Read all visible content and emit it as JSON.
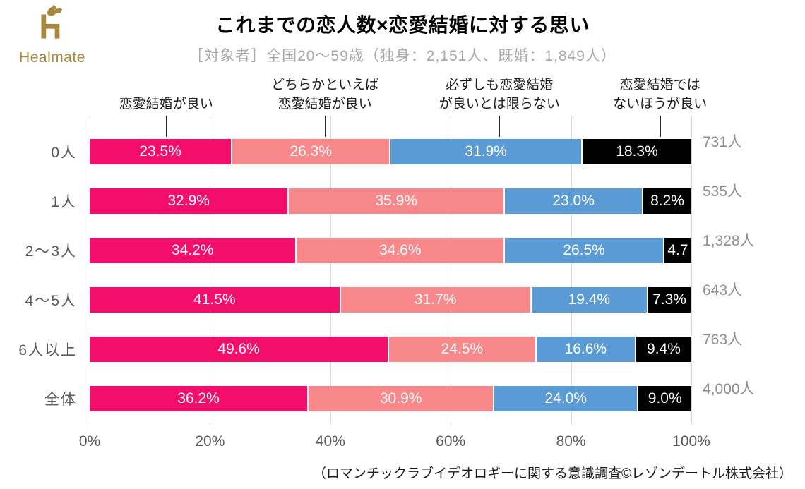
{
  "brand": {
    "logo_text": "Healmate",
    "logo_color": "#A6873B"
  },
  "header": {
    "title": "これまでの恋人数×恋愛結婚に対する思い",
    "subtitle": "［対象者］全国20～59歳（独身：2,151人、既婚：1,849人）"
  },
  "footer": {
    "source": "（ロマンチックラブイデオロギーに関する意識調査©レゾンデートル株式会社）"
  },
  "chart_data": {
    "type": "bar",
    "orientation": "horizontal",
    "stacked": true,
    "unit": "%",
    "xlim": [
      0,
      100
    ],
    "grid": true,
    "x_ticks": [
      "0%",
      "20%",
      "40%",
      "60%",
      "80%",
      "100%"
    ],
    "categories": [
      "0人",
      "1人",
      "2～3人",
      "4～5人",
      "6人以上",
      "全体"
    ],
    "counts": [
      "731人",
      "535人",
      "1,328人",
      "643人",
      "763人",
      "4,000人"
    ],
    "series": [
      {
        "name": "恋愛結婚が良い",
        "color": "#F40E6C",
        "values": [
          23.5,
          32.9,
          34.2,
          41.5,
          49.6,
          36.2
        ]
      },
      {
        "name": "どちらかといえば恋愛結婚が良い",
        "color": "#F9888A",
        "values": [
          26.3,
          35.9,
          34.6,
          31.7,
          24.5,
          30.9
        ]
      },
      {
        "name": "必ずしも恋愛結婚が良いとは限らない",
        "color": "#5B9BD5",
        "values": [
          31.9,
          23.0,
          26.5,
          19.4,
          16.6,
          24.0
        ]
      },
      {
        "name": "恋愛結婚ではないほうが良い",
        "color": "#000000",
        "values": [
          18.3,
          8.2,
          4.7,
          7.3,
          9.4,
          9.0
        ]
      }
    ],
    "labels": [
      [
        "23.5%",
        "26.3%",
        "31.9%",
        "18.3%"
      ],
      [
        "32.9%",
        "35.9%",
        "23.0%",
        "8.2%"
      ],
      [
        "34.2%",
        "34.6%",
        "26.5%",
        "4.7"
      ],
      [
        "41.5%",
        "31.7%",
        "19.4%",
        "7.3%"
      ],
      [
        "49.6%",
        "24.5%",
        "16.6%",
        "9.4%"
      ],
      [
        "36.2%",
        "30.9%",
        "24.0%",
        "9.0%"
      ]
    ],
    "legend": {
      "position": "top",
      "labels": [
        {
          "lines": [
            "恋愛結婚が良い"
          ],
          "x_percent": 12.7
        },
        {
          "lines": [
            "どちらかといえば",
            "恋愛結婚が良い"
          ],
          "x_percent": 39.1
        },
        {
          "lines": [
            "必ずしも恋愛結婚",
            "が良いとは限らない"
          ],
          "x_percent": 68.1
        },
        {
          "lines": [
            "恋愛結婚では",
            "ないほうが良い"
          ],
          "x_percent": 94.8
        }
      ]
    }
  }
}
